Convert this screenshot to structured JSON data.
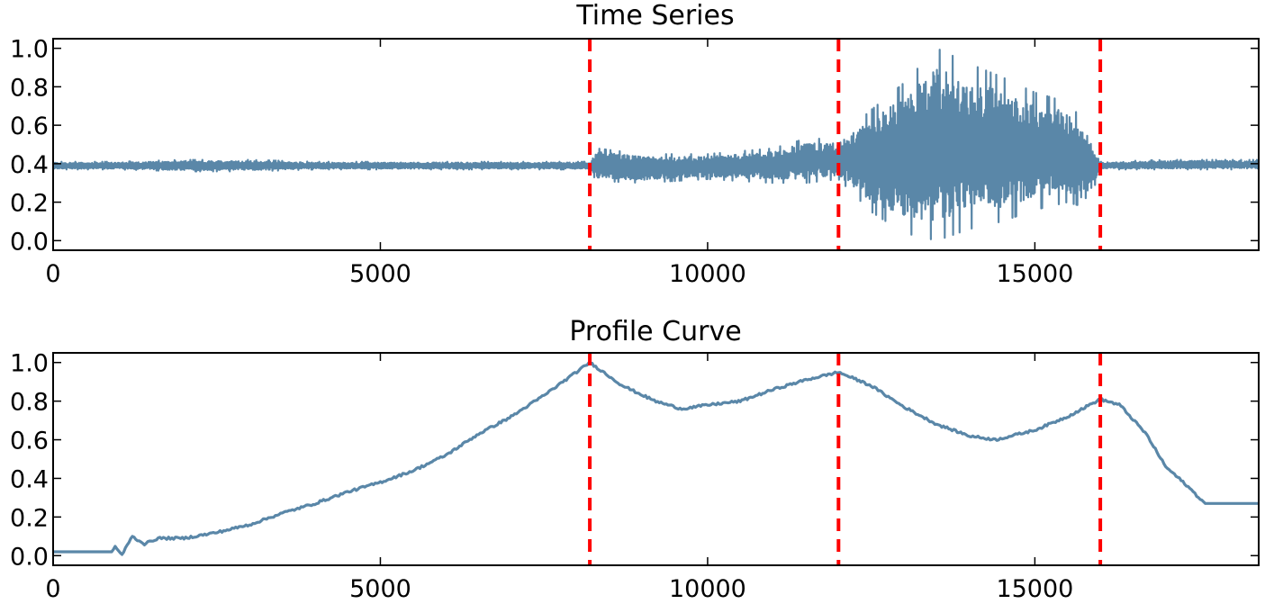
{
  "colors": {
    "line": "#5a87a8",
    "changepoint": "#ff0000",
    "axes": "#000000",
    "background": "#ffffff"
  },
  "chart_data": [
    {
      "type": "line",
      "title": "Time Series",
      "xlabel": "",
      "ylabel": "",
      "xlim": [
        0,
        18420
      ],
      "ylim": [
        -0.05,
        1.05
      ],
      "xticks": [
        0,
        5000,
        10000,
        15000
      ],
      "xtick_labels": [
        "0",
        "5000",
        "10000",
        "15000"
      ],
      "yticks": [
        0.0,
        0.2,
        0.4,
        0.6,
        0.8,
        1.0
      ],
      "ytick_labels": [
        "0.0",
        "0.2",
        "0.4",
        "0.6",
        "0.8",
        "1.0"
      ],
      "grid": false,
      "legend": null,
      "changepoints": [
        8200,
        12000,
        16000
      ],
      "series": [
        {
          "name": "signal",
          "description": "noisy time series centred at ~0.39; envelope [lower, upper] per segment",
          "x": [
            0,
            1000,
            2000,
            3000,
            4000,
            5000,
            6000,
            7000,
            8200,
            8300,
            9000,
            10000,
            11000,
            11500,
            12000,
            12500,
            13000,
            13500,
            14000,
            14500,
            15000,
            15500,
            15800,
            16000,
            17000,
            18420
          ],
          "upper": [
            0.41,
            0.41,
            0.42,
            0.42,
            0.41,
            0.41,
            0.41,
            0.41,
            0.41,
            0.48,
            0.45,
            0.45,
            0.48,
            0.53,
            0.53,
            0.68,
            0.82,
            1.0,
            0.92,
            0.85,
            0.77,
            0.72,
            0.6,
            0.41,
            0.42,
            0.42
          ],
          "lower": [
            0.37,
            0.37,
            0.36,
            0.36,
            0.37,
            0.37,
            0.37,
            0.37,
            0.37,
            0.31,
            0.3,
            0.32,
            0.3,
            0.3,
            0.32,
            0.15,
            0.04,
            0.0,
            0.06,
            0.1,
            0.16,
            0.2,
            0.17,
            0.37,
            0.37,
            0.37
          ]
        }
      ]
    },
    {
      "type": "line",
      "title": "Profile Curve",
      "xlabel": "",
      "ylabel": "",
      "xlim": [
        0,
        18420
      ],
      "ylim": [
        -0.05,
        1.05
      ],
      "xticks": [
        0,
        5000,
        10000,
        15000
      ],
      "xtick_labels": [
        "0",
        "5000",
        "10000",
        "15000"
      ],
      "yticks": [
        0.0,
        0.2,
        0.4,
        0.6,
        0.8,
        1.0
      ],
      "ytick_labels": [
        "0.0",
        "0.2",
        "0.4",
        "0.6",
        "0.8",
        "1.0"
      ],
      "grid": false,
      "legend": null,
      "changepoints": [
        8200,
        12000,
        16000
      ],
      "series": [
        {
          "name": "profile",
          "x": [
            0,
            900,
            950,
            1050,
            1200,
            1400,
            1600,
            2000,
            2500,
            3000,
            3500,
            4000,
            4500,
            5000,
            5500,
            6000,
            6500,
            7000,
            7500,
            8200,
            8700,
            9200,
            9600,
            10000,
            10500,
            11000,
            11500,
            12000,
            12500,
            13000,
            13500,
            14000,
            14400,
            15000,
            15500,
            16000,
            16300,
            16700,
            17000,
            17300,
            17600,
            18000,
            18420
          ],
          "y": [
            0.02,
            0.02,
            0.05,
            0.0,
            0.1,
            0.06,
            0.09,
            0.09,
            0.12,
            0.16,
            0.22,
            0.27,
            0.33,
            0.38,
            0.44,
            0.52,
            0.63,
            0.72,
            0.83,
            1.0,
            0.88,
            0.8,
            0.76,
            0.78,
            0.8,
            0.86,
            0.91,
            0.95,
            0.88,
            0.77,
            0.68,
            0.62,
            0.6,
            0.65,
            0.72,
            0.81,
            0.78,
            0.63,
            0.46,
            0.37,
            0.27,
            0.27,
            0.27
          ]
        }
      ]
    }
  ]
}
